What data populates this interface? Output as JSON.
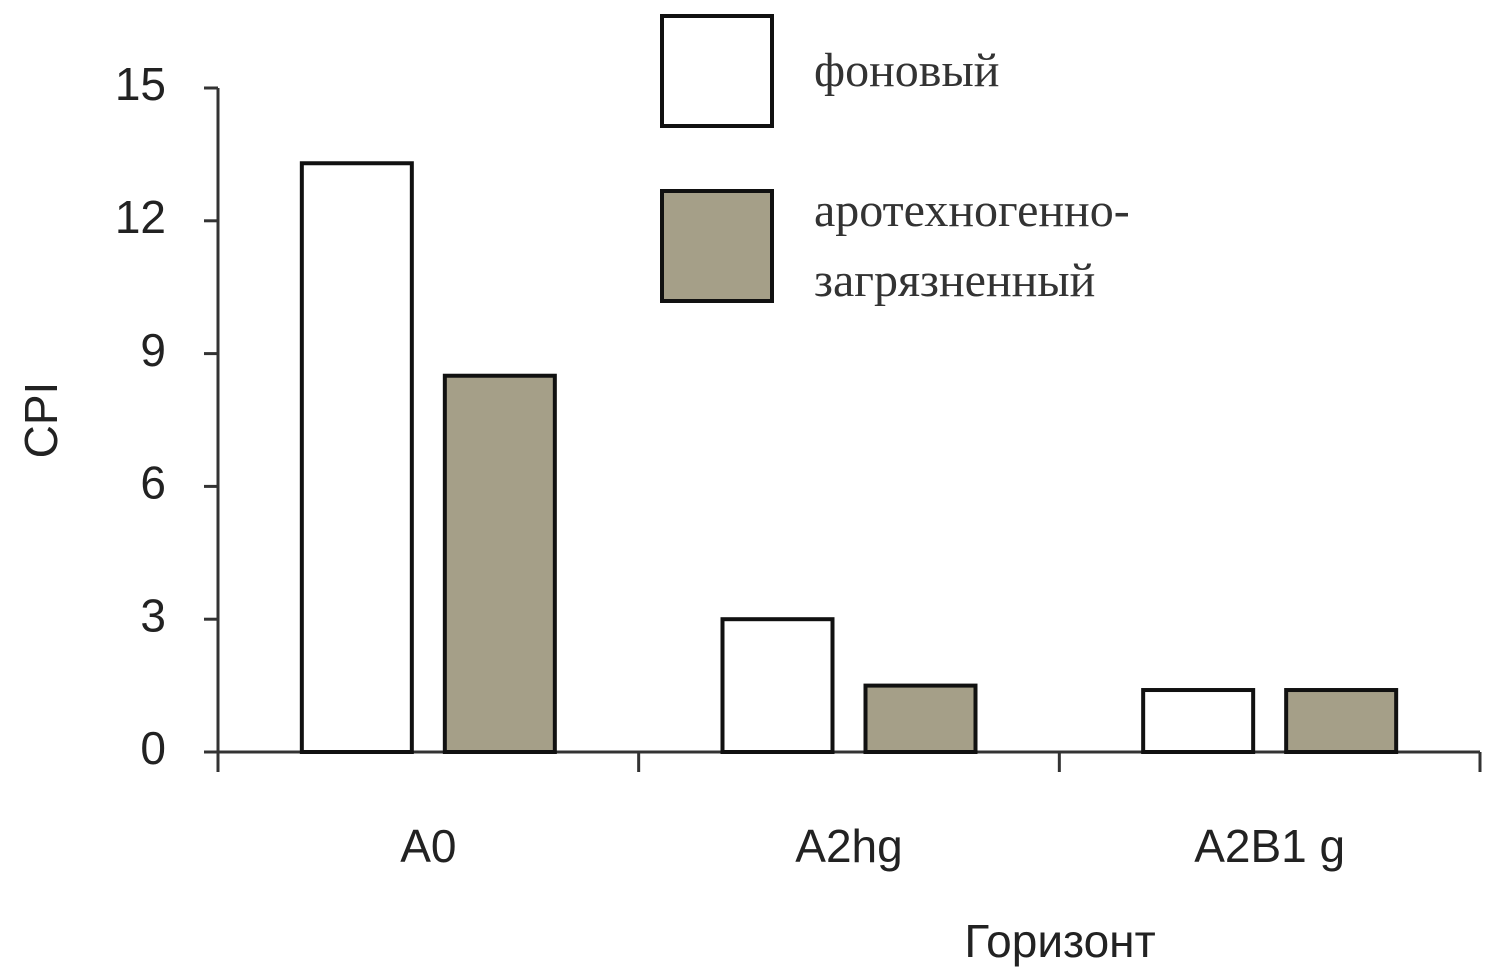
{
  "chart_data": {
    "type": "bar",
    "y_label": "CPI",
    "x_label": "Горизонт",
    "categories": [
      "A0",
      "A2hg",
      "A2B1 g"
    ],
    "series": [
      {
        "name": "фоновый",
        "color": "#ffffff",
        "values": [
          13.3,
          3.0,
          1.4
        ]
      },
      {
        "name": "аротехногенно-загрязненный",
        "color": "#a59f88",
        "values": [
          8.5,
          1.5,
          1.4
        ]
      }
    ],
    "ylim": [
      0,
      15
    ],
    "yticks": [
      0,
      3,
      6,
      9,
      12,
      15
    ]
  }
}
